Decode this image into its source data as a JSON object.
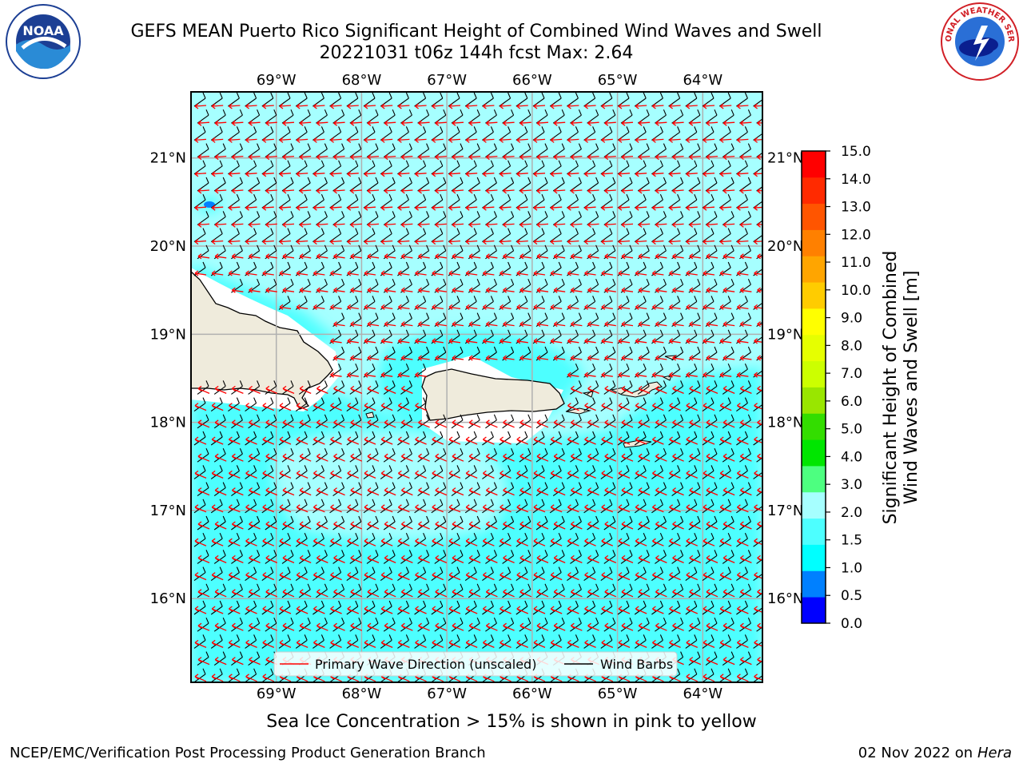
{
  "header": {
    "title_line1": "GEFS MEAN Puerto Rico Significant Height of Combined Wind Waves and Swell",
    "title_line2": "20221031 t06z 144h fcst   Max: 2.64"
  },
  "logos": {
    "left": {
      "icon": "noaa-logo",
      "text": "NOAA"
    },
    "right": {
      "icon": "nws-logo",
      "text": "NATIONAL WEATHER SERVICE"
    }
  },
  "map": {
    "lon_labels": [
      "69°W",
      "68°W",
      "67°W",
      "66°W",
      "65°W",
      "64°W"
    ],
    "lon_values": [
      -69,
      -68,
      -67,
      -66,
      -65,
      -64
    ],
    "lat_labels": [
      "16°N",
      "17°N",
      "18°N",
      "19°N",
      "20°N",
      "21°N"
    ],
    "lat_values": [
      16,
      17,
      18,
      19,
      20,
      21
    ],
    "lon_range": [
      -70.0,
      -63.3
    ],
    "lat_range": [
      15.05,
      21.75
    ],
    "land_color": "#efebdc",
    "coast_color": "#000000",
    "colors": {
      "sea_high": "#a6ffff",
      "sea_mid": "#4dffff",
      "sea_low": "#00ffff",
      "wave_arrow": "#ff0000",
      "wind_barb": "#000000"
    }
  },
  "legend": {
    "wave_direction": "Primary Wave Direction (unscaled)",
    "wind_barbs": "Wind Barbs"
  },
  "colorbar": {
    "title_line1": "Significant Height of Combined",
    "title_line2": "Wind Waves and Swell [m]",
    "ticks": [
      "0.0",
      "0.5",
      "1.0",
      "1.5",
      "2.0",
      "3.0",
      "4.0",
      "5.0",
      "6.0",
      "7.0",
      "8.0",
      "9.0",
      "10.0",
      "11.0",
      "12.0",
      "13.0",
      "14.0",
      "15.0"
    ],
    "colors": [
      "#0000ff",
      "#0080ff",
      "#00ffff",
      "#4dffff",
      "#a6ffff",
      "#4dff80",
      "#00e600",
      "#33dd00",
      "#99e600",
      "#ccff00",
      "#e6ff00",
      "#ffff00",
      "#ffcc00",
      "#ffa500",
      "#ff8000",
      "#ff5500",
      "#ff2a00",
      "#ff0000"
    ]
  },
  "notes": {
    "sea_ice": "Sea Ice Concentration > 15% is shown in pink to yellow"
  },
  "footer": {
    "left": "NCEP/EMC/Verification Post Processing Product Generation Branch",
    "right_date": "02 Nov 2022 on",
    "right_host": "Hera"
  }
}
